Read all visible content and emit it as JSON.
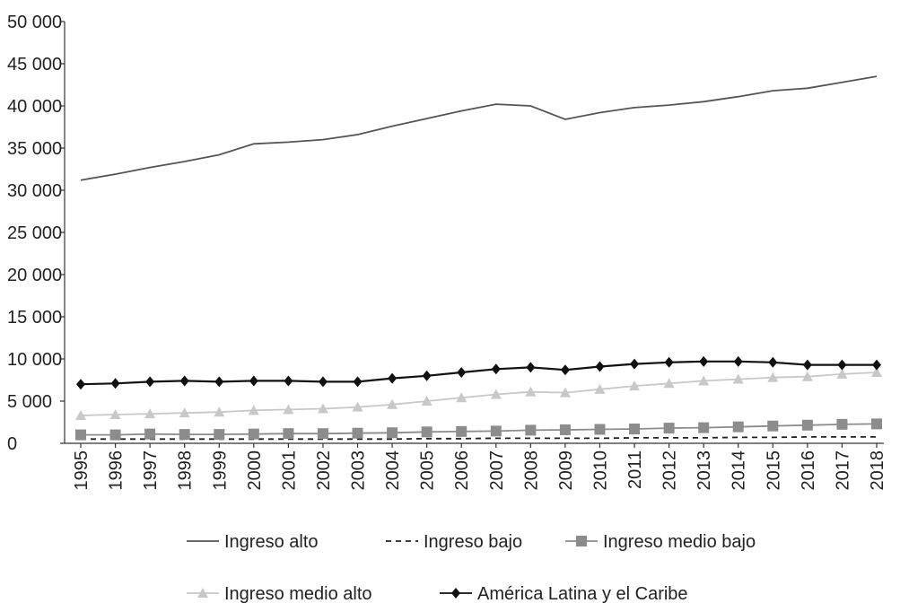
{
  "chart_data": {
    "type": "line",
    "title": "",
    "xlabel": "",
    "ylabel": "",
    "ylim": [
      0,
      50000
    ],
    "yticks": [
      0,
      5000,
      10000,
      15000,
      20000,
      25000,
      30000,
      35000,
      40000,
      45000,
      50000
    ],
    "ytick_labels": [
      "0",
      "5 000",
      "10 000",
      "15 000",
      "20 000",
      "25 000",
      "30 000",
      "35 000",
      "40 000",
      "45 000",
      "50 000"
    ],
    "categories": [
      "1995",
      "1996",
      "1997",
      "1998",
      "1999",
      "2000",
      "2001",
      "2002",
      "2003",
      "2004",
      "2005",
      "2006",
      "2007",
      "2008",
      "2009",
      "2010",
      "2011",
      "2012",
      "2013",
      "2014",
      "2015",
      "2016",
      "2017",
      "2018"
    ],
    "legend_position": "bottom",
    "series": [
      {
        "name": "Ingreso alto",
        "color": "#555555",
        "style": "solid",
        "marker": "none",
        "values": [
          31200,
          31900,
          32700,
          33400,
          34200,
          35500,
          35700,
          36000,
          36600,
          37600,
          38500,
          39400,
          40200,
          40000,
          38400,
          39200,
          39800,
          40100,
          40500,
          41100,
          41800,
          42100,
          42800,
          43500
        ]
      },
      {
        "name": "Ingreso bajo",
        "color": "#222222",
        "style": "dashed",
        "marker": "none",
        "values": [
          500,
          500,
          500,
          500,
          500,
          500,
          500,
          500,
          500,
          500,
          550,
          550,
          600,
          600,
          600,
          600,
          650,
          650,
          650,
          700,
          700,
          750,
          750,
          750
        ]
      },
      {
        "name": "Ingreso medio bajo",
        "color": "#8c8c8c",
        "style": "solid",
        "marker": "square",
        "values": [
          1000,
          1000,
          1100,
          1050,
          1050,
          1100,
          1150,
          1150,
          1200,
          1250,
          1350,
          1400,
          1450,
          1550,
          1600,
          1650,
          1700,
          1800,
          1850,
          1950,
          2050,
          2150,
          2250,
          2300
        ]
      },
      {
        "name": "Ingreso medio alto",
        "color": "#c8c8c8",
        "style": "solid",
        "marker": "triangle",
        "values": [
          3300,
          3400,
          3500,
          3600,
          3700,
          3900,
          4000,
          4100,
          4300,
          4600,
          5000,
          5400,
          5800,
          6100,
          6000,
          6400,
          6800,
          7100,
          7400,
          7600,
          7800,
          7900,
          8200,
          8400
        ]
      },
      {
        "name": "América Latina y el Caribe",
        "color": "#111111",
        "style": "solid",
        "marker": "diamond",
        "values": [
          7000,
          7100,
          7300,
          7400,
          7300,
          7400,
          7400,
          7300,
          7300,
          7700,
          8000,
          8400,
          8800,
          9000,
          8700,
          9100,
          9400,
          9600,
          9700,
          9700,
          9600,
          9300,
          9300,
          9300
        ]
      }
    ]
  }
}
